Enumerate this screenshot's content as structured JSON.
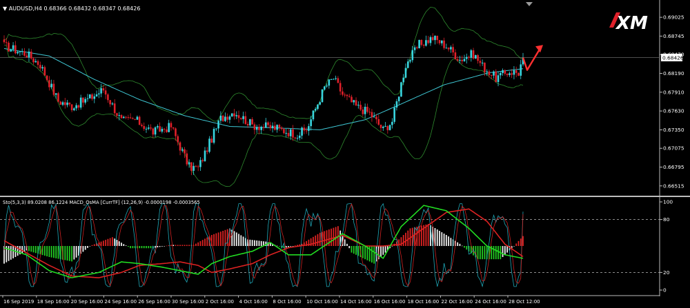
{
  "header": {
    "symbol_line": "AUDUSD,H4  0.68366 0.68432 0.68347 0.68426",
    "indicator_line": "Sto(5,3,3) 89.0208 86.1224   MACD_OsMA [CurrTF] (12,26,9) -0.0000198 -0.0003565"
  },
  "logo": {
    "text": "XM"
  },
  "colors": {
    "background": "#000000",
    "bull_candle": "#39d6e0",
    "bear_candle": "#e0202a",
    "bollinger": "#2e8b2e",
    "moving_average": "#3fc9d6",
    "price_line": "#9a9a9a",
    "stoch_main": "#1fa8b8",
    "stoch_signal": "#cc2222",
    "macd_fast": "#22dd22",
    "macd_slow": "#dd2222",
    "osma_pos_strong": "#dd2222",
    "osma_pos_weak": "#f0f0f0",
    "osma_neg_strong": "#22cc22",
    "osma_neg_weak": "#f0f0f0",
    "forecast_arrow": "#ff3030"
  },
  "chart_data": [
    {
      "type": "candlestick",
      "title": "AUDUSD,H4",
      "ylim": [
        0.664,
        0.6918
      ],
      "y_ticks": [
        "0.69025",
        "0.68745",
        "0.68470",
        "0.68190",
        "0.67910",
        "0.67630",
        "0.67350",
        "0.67075",
        "0.66795",
        "0.66515"
      ],
      "y_tick_values": [
        0.69025,
        0.68745,
        0.6847,
        0.6819,
        0.6791,
        0.6763,
        0.6735,
        0.67075,
        0.66795,
        0.66515
      ],
      "current_price": "0.68426",
      "x_tick_labels": [
        "16 Sep 2019",
        "18 Sep 16:00",
        "20 Sep 16:00",
        "24 Sep 16:00",
        "26 Sep 16:00",
        "30 Sep 16:00",
        "2 Oct 16:00",
        "4 Oct 16:00",
        "8 Oct 16:00",
        "10 Oct 16:00",
        "14 Oct 16:00",
        "16 Oct 16:00",
        "18 Oct 16:00",
        "22 Oct 16:00",
        "24 Oct 16:00",
        "28 Oct 12:00"
      ],
      "close_waypoints": [
        [
          0,
          0.686
        ],
        [
          10,
          0.6848
        ],
        [
          16,
          0.6832
        ],
        [
          24,
          0.6778
        ],
        [
          30,
          0.677
        ],
        [
          38,
          0.6782
        ],
        [
          44,
          0.6795
        ],
        [
          52,
          0.6748
        ],
        [
          58,
          0.675
        ],
        [
          66,
          0.6732
        ],
        [
          74,
          0.674
        ],
        [
          82,
          0.668
        ],
        [
          86,
          0.6678
        ],
        [
          96,
          0.6752
        ],
        [
          102,
          0.6762
        ],
        [
          110,
          0.6742
        ],
        [
          120,
          0.6738
        ],
        [
          130,
          0.6728
        ],
        [
          134,
          0.6735
        ],
        [
          142,
          0.6798
        ],
        [
          146,
          0.6812
        ],
        [
          150,
          0.6788
        ],
        [
          156,
          0.677
        ],
        [
          162,
          0.676
        ],
        [
          168,
          0.6735
        ],
        [
          172,
          0.6748
        ],
        [
          178,
          0.6832
        ],
        [
          184,
          0.6862
        ],
        [
          190,
          0.6872
        ],
        [
          196,
          0.686
        ],
        [
          202,
          0.684
        ],
        [
          208,
          0.6848
        ],
        [
          212,
          0.683
        ],
        [
          218,
          0.6812
        ],
        [
          224,
          0.6822
        ],
        [
          228,
          0.682
        ],
        [
          230,
          0.68426
        ]
      ],
      "moving_average_waypoints": [
        [
          0,
          0.6856
        ],
        [
          20,
          0.6845
        ],
        [
          40,
          0.681
        ],
        [
          60,
          0.678
        ],
        [
          80,
          0.6756
        ],
        [
          100,
          0.674
        ],
        [
          120,
          0.6738
        ],
        [
          140,
          0.6735
        ],
        [
          160,
          0.675
        ],
        [
          175,
          0.6772
        ],
        [
          195,
          0.6802
        ],
        [
          215,
          0.682
        ],
        [
          230,
          0.6826
        ]
      ],
      "forecast": {
        "from_index": 230,
        "path": [
          0.68426,
          0.6824,
          0.6848
        ]
      }
    },
    {
      "type": "oscillator",
      "title": "Sto(5,3,3) / MACD_OsMA (12,26,9)",
      "ylim": [
        0,
        100
      ],
      "y_ticks": [
        "100",
        "80",
        "20",
        "0"
      ],
      "y_tick_values": [
        100,
        80,
        20,
        0
      ],
      "levels": [
        80,
        20
      ],
      "stoch_last": [
        89.0208,
        86.1224
      ],
      "macd_last": [
        -1.98e-05,
        -0.0003565
      ],
      "macd_fast_waypoints": [
        [
          0,
          48
        ],
        [
          10,
          40
        ],
        [
          20,
          22
        ],
        [
          30,
          14
        ],
        [
          42,
          20
        ],
        [
          52,
          32
        ],
        [
          60,
          30
        ],
        [
          70,
          26
        ],
        [
          78,
          22
        ],
        [
          86,
          18
        ],
        [
          92,
          30
        ],
        [
          100,
          38
        ],
        [
          110,
          44
        ],
        [
          118,
          54
        ],
        [
          126,
          40
        ],
        [
          136,
          40
        ],
        [
          150,
          64
        ],
        [
          160,
          50
        ],
        [
          168,
          36
        ],
        [
          176,
          72
        ],
        [
          186,
          96
        ],
        [
          196,
          90
        ],
        [
          206,
          70
        ],
        [
          214,
          50
        ],
        [
          222,
          40
        ],
        [
          230,
          36
        ]
      ],
      "macd_slow_waypoints": [
        [
          0,
          56
        ],
        [
          10,
          42
        ],
        [
          20,
          28
        ],
        [
          30,
          16
        ],
        [
          42,
          14
        ],
        [
          52,
          20
        ],
        [
          60,
          28
        ],
        [
          70,
          30
        ],
        [
          78,
          32
        ],
        [
          86,
          28
        ],
        [
          92,
          20
        ],
        [
          100,
          24
        ],
        [
          110,
          30
        ],
        [
          118,
          40
        ],
        [
          126,
          48
        ],
        [
          136,
          52
        ],
        [
          150,
          62
        ],
        [
          160,
          50
        ],
        [
          168,
          50
        ],
        [
          176,
          52
        ],
        [
          186,
          70
        ],
        [
          196,
          88
        ],
        [
          206,
          92
        ],
        [
          214,
          78
        ],
        [
          222,
          52
        ],
        [
          230,
          38
        ]
      ],
      "osma_waypoints": [
        [
          0,
          -0.8
        ],
        [
          10,
          -0.2
        ],
        [
          20,
          -0.5
        ],
        [
          30,
          -0.7
        ],
        [
          38,
          0.0
        ],
        [
          48,
          0.4
        ],
        [
          56,
          -0.1
        ],
        [
          66,
          -0.1
        ],
        [
          74,
          0.05
        ],
        [
          84,
          0.05
        ],
        [
          92,
          0.5
        ],
        [
          100,
          0.8
        ],
        [
          108,
          0.3
        ],
        [
          116,
          0.2
        ],
        [
          124,
          -0.1
        ],
        [
          132,
          0.1
        ],
        [
          140,
          0.6
        ],
        [
          148,
          0.9
        ],
        [
          154,
          -0.3
        ],
        [
          164,
          -0.8
        ],
        [
          172,
          0.0
        ],
        [
          180,
          0.8
        ],
        [
          188,
          1.0
        ],
        [
          196,
          0.5
        ],
        [
          202,
          0.1
        ],
        [
          210,
          -0.6
        ],
        [
          220,
          -0.6
        ],
        [
          226,
          0.0
        ],
        [
          230,
          0.45
        ]
      ],
      "stoch_phase": 0
    }
  ]
}
